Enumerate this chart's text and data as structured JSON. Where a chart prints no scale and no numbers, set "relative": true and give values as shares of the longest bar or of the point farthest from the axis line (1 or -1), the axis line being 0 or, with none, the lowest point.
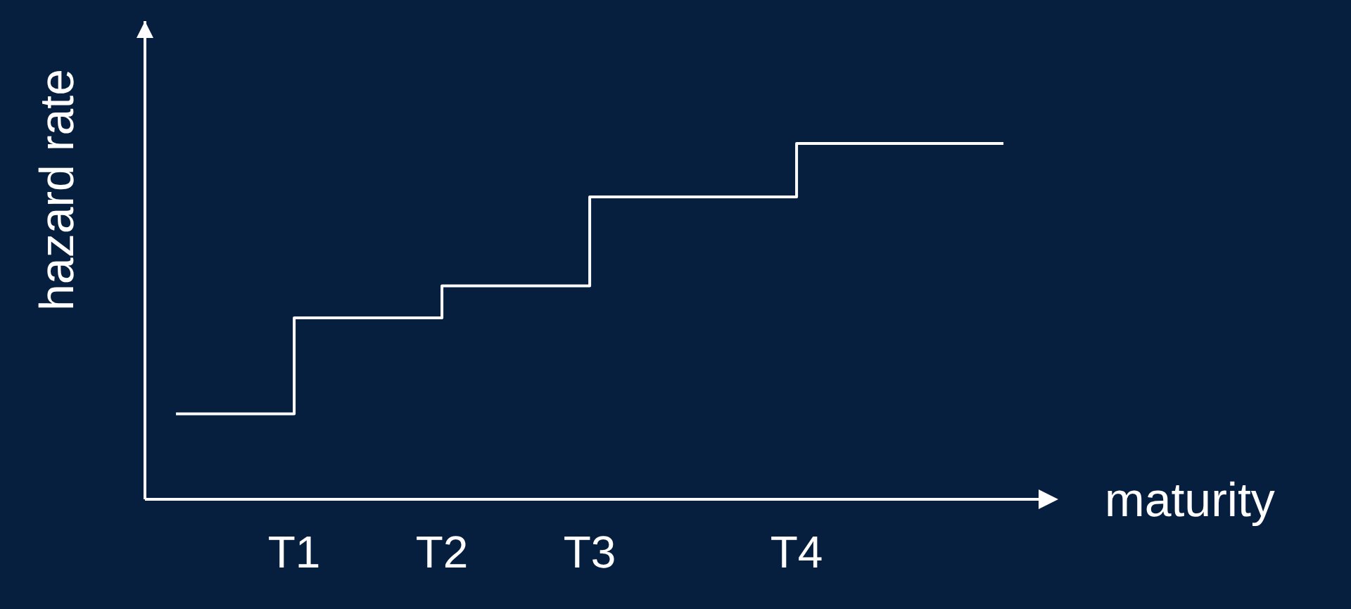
{
  "chart_data": {
    "type": "step",
    "xlabel": "maturity",
    "ylabel": "hazard rate",
    "relative": true,
    "categories": [
      null,
      null,
      null,
      null,
      "T1",
      null,
      null,
      null,
      null,
      "T2",
      null,
      null,
      null,
      null,
      "T3",
      null,
      null,
      null,
      null,
      null,
      null,
      "T4",
      null,
      null,
      null,
      null,
      null,
      null,
      null
    ],
    "series": [
      {
        "color": "#ffffff",
        "values": [
          0.24,
          0.24,
          0.24,
          0.24,
          0.51,
          0.51,
          0.51,
          0.51,
          0.51,
          0.6,
          0.6,
          0.6,
          0.6,
          0.6,
          0.85,
          0.85,
          0.85,
          0.85,
          0.85,
          0.85,
          0.85,
          1,
          1,
          1,
          1,
          1,
          1,
          1,
          1
        ]
      }
    ]
  }
}
